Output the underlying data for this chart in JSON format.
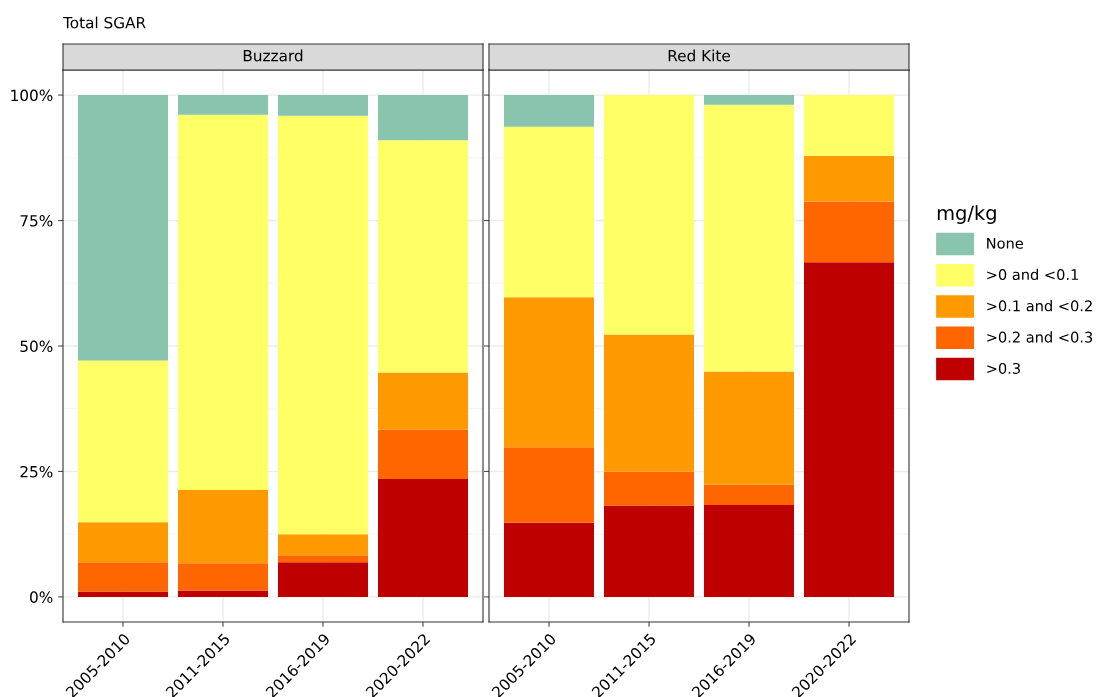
{
  "chart_data": [
    {
      "type": "bar",
      "title": "Buzzard",
      "stacked": true,
      "categories": [
        "2005-2010",
        "2011-2015",
        "2016-2019",
        "2020-2022"
      ],
      "series": [
        {
          "name": ">0.3",
          "color": "#bf0000",
          "values": [
            1.1,
            1.3,
            6.9,
            23.5
          ]
        },
        {
          "name": ">0.2 and <0.3",
          "color": "#ff6600",
          "values": [
            5.8,
            5.4,
            1.4,
            9.8
          ]
        },
        {
          "name": ">0.1 and <0.2",
          "color": "#ff9900",
          "values": [
            8.0,
            14.6,
            4.2,
            11.4
          ]
        },
        {
          "name": ">0 and <0.1",
          "color": "#ffff66",
          "values": [
            32.2,
            74.8,
            83.4,
            46.3
          ]
        },
        {
          "name": "None",
          "color": "#88c4ae",
          "values": [
            52.9,
            3.9,
            4.1,
            9.0
          ]
        }
      ],
      "ylim": [
        -5,
        105
      ],
      "yticks": [
        {
          "value": 0,
          "label": "0%"
        },
        {
          "value": 25,
          "label": "25%"
        },
        {
          "value": 50,
          "label": "50%"
        },
        {
          "value": 75,
          "label": "75%"
        },
        {
          "value": 100,
          "label": "100%"
        }
      ],
      "grid": true,
      "legend": "right",
      "legend_title": "mg/kg",
      "annotations": [
        "Total SGAR"
      ]
    },
    {
      "type": "bar",
      "title": "Red Kite",
      "stacked": true,
      "categories": [
        "2005-2010",
        "2011-2015",
        "2016-2019",
        "2020-2022"
      ],
      "series": [
        {
          "color": "#bf0000",
          "values": [
            14.8,
            18.2,
            18.3,
            66.7
          ]
        },
        {
          "color": "#ff6600",
          "values": [
            15.0,
            6.8,
            4.1,
            12.1
          ]
        },
        {
          "color": "#ff9900",
          "values": [
            29.9,
            27.3,
            22.5,
            9.1
          ]
        },
        {
          "color": "#ffff66",
          "values": [
            34.0,
            47.7,
            53.2,
            12.1
          ]
        },
        {
          "color": "#88c4ae",
          "values": [
            6.3,
            0,
            1.9,
            0
          ]
        }
      ],
      "ylim": [
        -5,
        105
      ],
      "yticks": [
        {
          "value": 0,
          "label": null
        },
        {
          "value": 25,
          "label": null
        },
        {
          "value": 50,
          "label": null
        },
        {
          "value": 75,
          "label": null
        },
        {
          "value": 100,
          "label": null
        }
      ],
      "tick_labels": "x",
      "grid": true
    }
  ]
}
